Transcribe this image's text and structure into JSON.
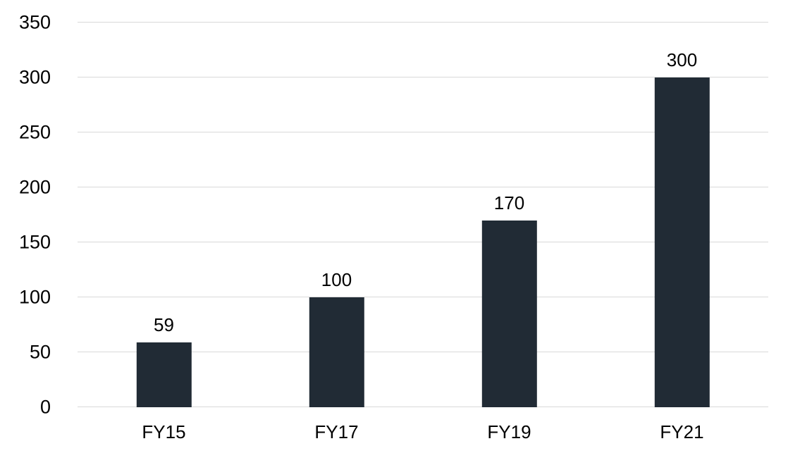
{
  "chart_data": {
    "type": "bar",
    "title": "",
    "xlabel": "",
    "ylabel": "",
    "categories": [
      "FY15",
      "FY17",
      "FY19",
      "FY21"
    ],
    "values": [
      59,
      100,
      170,
      300
    ],
    "data_labels": [
      "59",
      "100",
      "170",
      "300"
    ],
    "ylim": [
      0,
      350
    ],
    "yticks": [
      0,
      50,
      100,
      150,
      200,
      250,
      300,
      350
    ],
    "grid": true,
    "legend": false,
    "colors": {
      "bar": "#212b35",
      "gridline": "#d9d9d9",
      "background": "#ffffff",
      "text": "#000000"
    }
  }
}
